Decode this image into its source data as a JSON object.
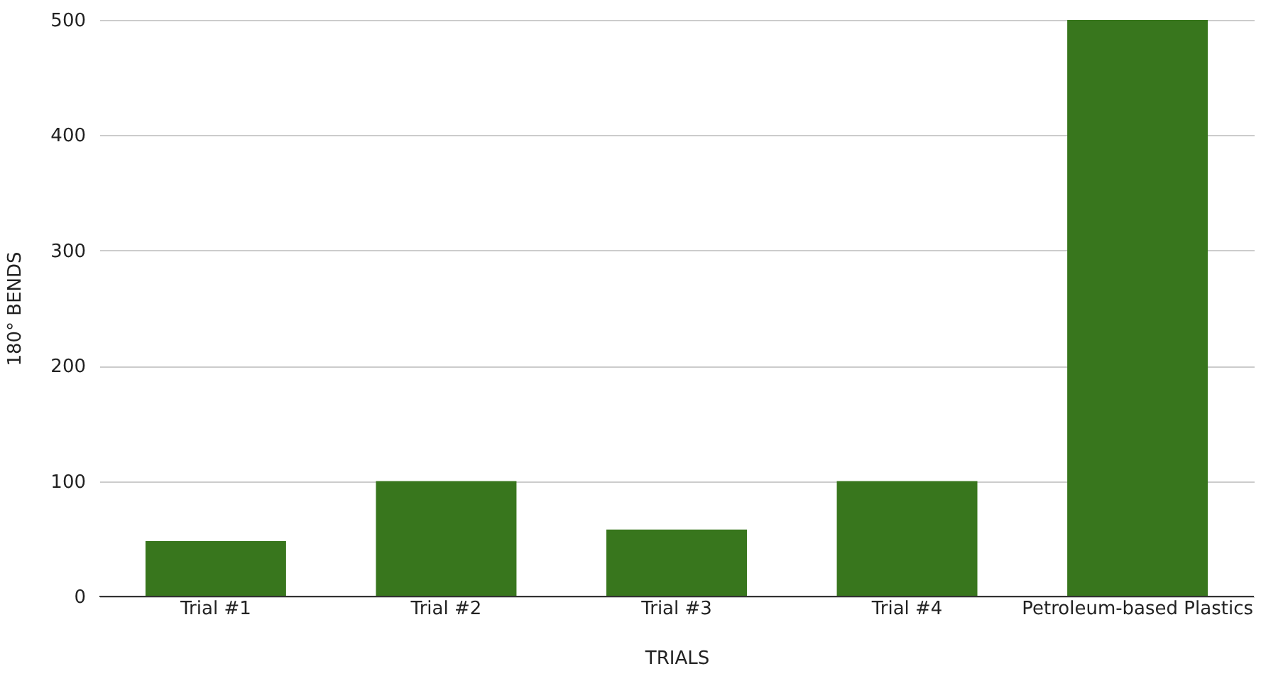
{
  "chart_data": {
    "type": "bar",
    "xlabel": "TRIALS",
    "ylabel": "180° BENDS",
    "categories": [
      "Trial #1",
      "Trial #2",
      "Trial #3",
      "Trial #4",
      "Petroleum-based Plastics"
    ],
    "values": [
      48,
      100,
      58,
      100,
      500
    ],
    "color": "#38761d",
    "ylim": [
      0,
      500
    ],
    "yticks": [
      0,
      100,
      200,
      300,
      400,
      500
    ],
    "grid": "y"
  }
}
